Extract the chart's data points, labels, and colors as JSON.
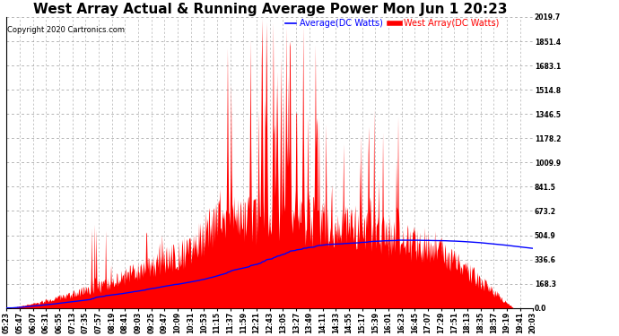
{
  "title": "West Array Actual & Running Average Power Mon Jun 1 20:23",
  "copyright": "Copyright 2020 Cartronics.com",
  "legend_labels": [
    "Average(DC Watts)",
    "West Array(DC Watts)"
  ],
  "legend_colors": [
    "#0000ff",
    "#ff0000"
  ],
  "yticks": [
    0.0,
    168.3,
    336.6,
    504.9,
    673.2,
    841.5,
    1009.9,
    1178.2,
    1346.5,
    1514.8,
    1683.1,
    1851.4,
    2019.7
  ],
  "ymax": 2019.7,
  "ymin": 0.0,
  "background_color": "#ffffff",
  "plot_bg_color": "#ffffff",
  "grid_color": "#999999",
  "bar_color": "#ff0000",
  "line_color": "#0000ff",
  "title_fontsize": 11,
  "tick_fontsize": 5.5,
  "copyright_fontsize": 6,
  "legend_fontsize": 7,
  "xtick_labels": [
    "05:23",
    "05:47",
    "06:07",
    "06:31",
    "06:55",
    "07:13",
    "07:35",
    "07:57",
    "08:19",
    "08:41",
    "09:03",
    "09:25",
    "09:47",
    "10:09",
    "10:31",
    "10:53",
    "11:15",
    "11:37",
    "11:59",
    "12:21",
    "12:43",
    "13:05",
    "13:27",
    "13:49",
    "14:11",
    "14:33",
    "14:55",
    "15:17",
    "15:39",
    "16:01",
    "16:23",
    "16:45",
    "17:07",
    "17:29",
    "17:51",
    "18:13",
    "18:35",
    "18:57",
    "19:19",
    "19:41",
    "20:03"
  ]
}
